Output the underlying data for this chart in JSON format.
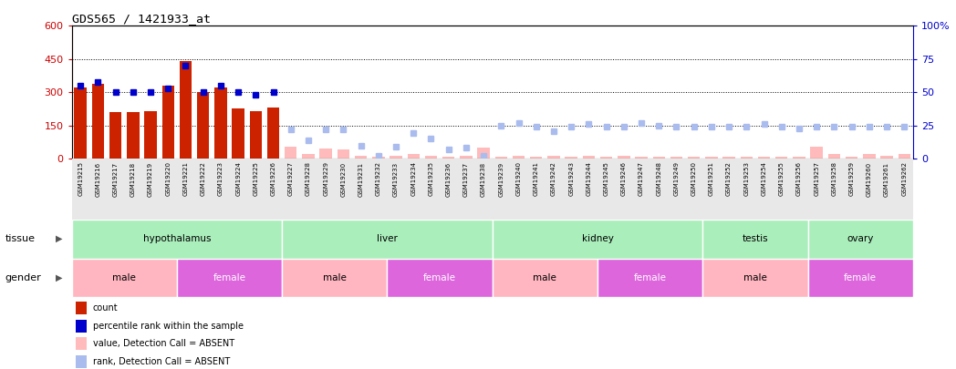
{
  "title": "GDS565 / 1421933_at",
  "samples": [
    "GSM19215",
    "GSM19216",
    "GSM19217",
    "GSM19218",
    "GSM19219",
    "GSM19220",
    "GSM19221",
    "GSM19222",
    "GSM19223",
    "GSM19224",
    "GSM19225",
    "GSM19226",
    "GSM19227",
    "GSM19228",
    "GSM19229",
    "GSM19230",
    "GSM19231",
    "GSM19232",
    "GSM19233",
    "GSM19234",
    "GSM19235",
    "GSM19236",
    "GSM19237",
    "GSM19238",
    "GSM19239",
    "GSM19240",
    "GSM19241",
    "GSM19242",
    "GSM19243",
    "GSM19244",
    "GSM19245",
    "GSM19246",
    "GSM19247",
    "GSM19248",
    "GSM19249",
    "GSM19250",
    "GSM19251",
    "GSM19252",
    "GSM19253",
    "GSM19254",
    "GSM19255",
    "GSM19256",
    "GSM19257",
    "GSM19258",
    "GSM19259",
    "GSM19260",
    "GSM19261",
    "GSM19262"
  ],
  "count_present": [
    320,
    340,
    210,
    210,
    215,
    330,
    440,
    300,
    320,
    225,
    215,
    230,
    null,
    null,
    null,
    null,
    null,
    null,
    null,
    null,
    null,
    null,
    null,
    null,
    null,
    null,
    null,
    null,
    null,
    null,
    null,
    null,
    null,
    null,
    null,
    null,
    null,
    null,
    null,
    null,
    null,
    null,
    null,
    null,
    null,
    null,
    null,
    null
  ],
  "count_absent": [
    null,
    null,
    null,
    null,
    null,
    null,
    null,
    null,
    null,
    null,
    null,
    null,
    55,
    20,
    45,
    40,
    15,
    10,
    12,
    20,
    12,
    8,
    12,
    50,
    10,
    12,
    8,
    12,
    10,
    12,
    8,
    12,
    10,
    8,
    8,
    8,
    8,
    8,
    8,
    10,
    8,
    8,
    55,
    20,
    8,
    20,
    12,
    20
  ],
  "rank_present": [
    55,
    58,
    50,
    50,
    50,
    53,
    70,
    50,
    55,
    50,
    48,
    50,
    null,
    null,
    null,
    null,
    null,
    null,
    null,
    null,
    null,
    null,
    null,
    null,
    null,
    null,
    null,
    null,
    null,
    null,
    null,
    null,
    null,
    null,
    null,
    null,
    null,
    null,
    null,
    null,
    null,
    null,
    null,
    null,
    null,
    null,
    null,
    null
  ],
  "rank_absent": [
    null,
    null,
    null,
    null,
    null,
    null,
    null,
    null,
    null,
    null,
    null,
    null,
    22,
    14,
    22,
    22,
    10,
    2,
    9,
    19,
    15,
    7,
    8,
    2,
    25,
    27,
    24,
    21,
    24,
    26,
    24,
    24,
    27,
    25,
    24,
    24,
    24,
    24,
    24,
    26,
    24,
    23,
    24,
    24,
    24,
    24,
    24,
    24
  ],
  "tissue_groups": [
    {
      "label": "hypothalamus",
      "start": 0,
      "end": 11,
      "color": "#AAEEBB"
    },
    {
      "label": "liver",
      "start": 12,
      "end": 23,
      "color": "#AAEEBB"
    },
    {
      "label": "kidney",
      "start": 24,
      "end": 35,
      "color": "#AAEEBB"
    },
    {
      "label": "testis",
      "start": 36,
      "end": 41,
      "color": "#AAEEBB"
    },
    {
      "label": "ovary",
      "start": 42,
      "end": 47,
      "color": "#AAEEBB"
    }
  ],
  "gender_groups": [
    {
      "label": "male",
      "start": 0,
      "end": 5,
      "color": "#FFB6C1"
    },
    {
      "label": "female",
      "start": 6,
      "end": 11,
      "color": "#DD66DD"
    },
    {
      "label": "male",
      "start": 12,
      "end": 17,
      "color": "#FFB6C1"
    },
    {
      "label": "female",
      "start": 18,
      "end": 23,
      "color": "#DD66DD"
    },
    {
      "label": "male",
      "start": 24,
      "end": 29,
      "color": "#FFB6C1"
    },
    {
      "label": "female",
      "start": 30,
      "end": 35,
      "color": "#DD66DD"
    },
    {
      "label": "male",
      "start": 36,
      "end": 41,
      "color": "#FFB6C1"
    },
    {
      "label": "female",
      "start": 42,
      "end": 47,
      "color": "#DD66DD"
    }
  ],
  "ylim_left": [
    0,
    600
  ],
  "ylim_right": [
    0,
    100
  ],
  "yticks_left": [
    0,
    150,
    300,
    450,
    600
  ],
  "yticks_right": [
    0,
    25,
    50,
    75,
    100
  ],
  "bar_color": "#CC2200",
  "bar_absent_color": "#FFBBBB",
  "rank_color": "#0000CC",
  "rank_absent_color": "#AABBEE",
  "axis_color_left": "#CC0000",
  "axis_color_right": "#0000CC",
  "legend_items": [
    {
      "color": "#CC2200",
      "type": "rect",
      "label": "count"
    },
    {
      "color": "#0000CC",
      "type": "rect",
      "label": "percentile rank within the sample"
    },
    {
      "color": "#FFBBBB",
      "type": "rect",
      "label": "value, Detection Call = ABSENT"
    },
    {
      "color": "#AABBEE",
      "type": "rect",
      "label": "rank, Detection Call = ABSENT"
    }
  ]
}
